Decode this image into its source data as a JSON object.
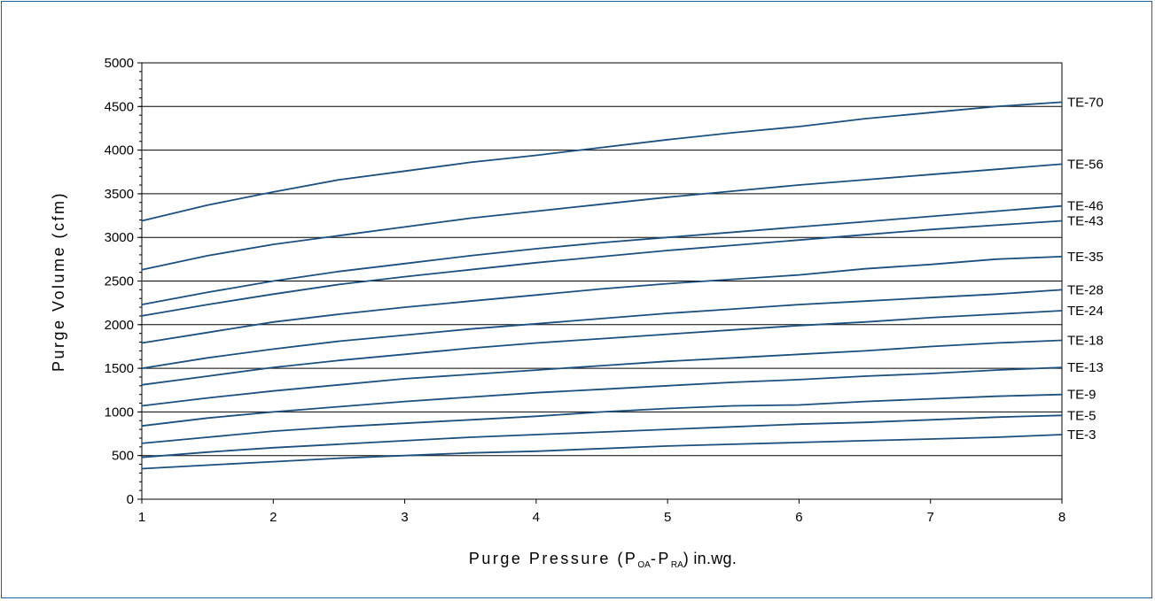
{
  "chart_data": {
    "type": "line",
    "title": "",
    "xlabel": {
      "prefix": "Purge Pressure (P",
      "sub1": "OA",
      "mid": "-P",
      "sub2": "RA",
      "suffix": ") in.wg."
    },
    "ylabel": "Purge Volume (cfm)",
    "xlim": [
      1,
      8
    ],
    "ylim": [
      0,
      5000
    ],
    "x_ticks": [
      1,
      2,
      3,
      4,
      5,
      6,
      7,
      8
    ],
    "y_ticks": [
      0,
      500,
      1000,
      1500,
      2000,
      2500,
      3000,
      3500,
      4000,
      4500,
      5000
    ],
    "grid": "horizontal",
    "line_color": "#1b4f7f",
    "series_labels_position": "right-end",
    "series": [
      {
        "name": "TE-70",
        "x": [
          1,
          1.5,
          2,
          2.5,
          3,
          3.5,
          4,
          4.5,
          5,
          5.5,
          6,
          6.5,
          7,
          7.5,
          8
        ],
        "y": [
          3190,
          3370,
          3520,
          3660,
          3760,
          3860,
          3940,
          4030,
          4120,
          4200,
          4270,
          4360,
          4430,
          4500,
          4550
        ]
      },
      {
        "name": "TE-56",
        "x": [
          1,
          1.5,
          2,
          2.5,
          3,
          3.5,
          4,
          4.5,
          5,
          5.5,
          6,
          6.5,
          7,
          7.5,
          8
        ],
        "y": [
          2630,
          2790,
          2920,
          3020,
          3120,
          3220,
          3300,
          3380,
          3460,
          3530,
          3600,
          3660,
          3720,
          3780,
          3840
        ]
      },
      {
        "name": "TE-46",
        "x": [
          1,
          1.5,
          2,
          2.5,
          3,
          3.5,
          4,
          4.5,
          5,
          5.5,
          6,
          6.5,
          7,
          7.5,
          8
        ],
        "y": [
          2230,
          2370,
          2500,
          2610,
          2700,
          2790,
          2870,
          2940,
          3000,
          3060,
          3120,
          3180,
          3240,
          3300,
          3360
        ]
      },
      {
        "name": "TE-43",
        "x": [
          1,
          1.5,
          2,
          2.5,
          3,
          3.5,
          4,
          4.5,
          5,
          5.5,
          6,
          6.5,
          7,
          7.5,
          8
        ],
        "y": [
          2100,
          2230,
          2350,
          2460,
          2550,
          2630,
          2710,
          2780,
          2850,
          2910,
          2970,
          3030,
          3090,
          3140,
          3190
        ]
      },
      {
        "name": "TE-35",
        "x": [
          1,
          1.5,
          2,
          2.5,
          3,
          3.5,
          4,
          4.5,
          5,
          5.5,
          6,
          6.5,
          7,
          7.5,
          8
        ],
        "y": [
          1790,
          1910,
          2030,
          2120,
          2200,
          2270,
          2340,
          2410,
          2470,
          2520,
          2570,
          2640,
          2690,
          2750,
          2780
        ]
      },
      {
        "name": "TE-28",
        "x": [
          1,
          1.5,
          2,
          2.5,
          3,
          3.5,
          4,
          4.5,
          5,
          5.5,
          6,
          6.5,
          7,
          7.5,
          8
        ],
        "y": [
          1500,
          1620,
          1720,
          1810,
          1880,
          1950,
          2010,
          2070,
          2130,
          2180,
          2230,
          2270,
          2310,
          2350,
          2400
        ]
      },
      {
        "name": "TE-24",
        "x": [
          1,
          1.5,
          2,
          2.5,
          3,
          3.5,
          4,
          4.5,
          5,
          5.5,
          6,
          6.5,
          7,
          7.5,
          8
        ],
        "y": [
          1310,
          1410,
          1510,
          1590,
          1660,
          1730,
          1790,
          1840,
          1890,
          1940,
          1990,
          2030,
          2080,
          2120,
          2160
        ]
      },
      {
        "name": "TE-18",
        "x": [
          1,
          1.5,
          2,
          2.5,
          3,
          3.5,
          4,
          4.5,
          5,
          5.5,
          6,
          6.5,
          7,
          7.5,
          8
        ],
        "y": [
          1070,
          1160,
          1240,
          1310,
          1380,
          1430,
          1480,
          1530,
          1580,
          1620,
          1660,
          1700,
          1750,
          1790,
          1820
        ]
      },
      {
        "name": "TE-13",
        "x": [
          1,
          1.5,
          2,
          2.5,
          3,
          3.5,
          4,
          4.5,
          5,
          5.5,
          6,
          6.5,
          7,
          7.5,
          8
        ],
        "y": [
          840,
          930,
          1000,
          1060,
          1120,
          1170,
          1220,
          1260,
          1300,
          1340,
          1370,
          1410,
          1440,
          1480,
          1510
        ]
      },
      {
        "name": "TE-9",
        "x": [
          1,
          1.5,
          2,
          2.5,
          3,
          3.5,
          4,
          4.5,
          5,
          5.5,
          6,
          6.5,
          7,
          7.5,
          8
        ],
        "y": [
          640,
          710,
          780,
          830,
          870,
          910,
          950,
          1000,
          1040,
          1070,
          1080,
          1120,
          1150,
          1180,
          1200
        ]
      },
      {
        "name": "TE-5",
        "x": [
          1,
          1.5,
          2,
          2.5,
          3,
          3.5,
          4,
          4.5,
          5,
          5.5,
          6,
          6.5,
          7,
          7.5,
          8
        ],
        "y": [
          480,
          540,
          590,
          630,
          670,
          710,
          740,
          770,
          800,
          830,
          860,
          880,
          910,
          940,
          960
        ]
      },
      {
        "name": "TE-3",
        "x": [
          1,
          1.5,
          2,
          2.5,
          3,
          3.5,
          4,
          4.5,
          5,
          5.5,
          6,
          6.5,
          7,
          7.5,
          8
        ],
        "y": [
          350,
          390,
          430,
          470,
          500,
          530,
          550,
          580,
          610,
          630,
          650,
          670,
          690,
          710,
          740
        ]
      }
    ]
  }
}
